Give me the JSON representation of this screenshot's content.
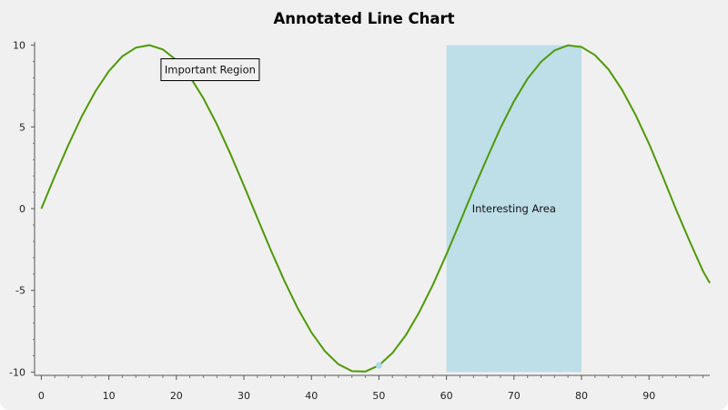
{
  "window": {
    "title": "Annotated Line Chart"
  },
  "chart_data": {
    "type": "line",
    "title": "Annotated Line Chart",
    "xlabel": "",
    "ylabel": "",
    "xlim": [
      -1,
      99
    ],
    "ylim": [
      -10.2,
      10.2
    ],
    "xticks": [
      0,
      10,
      20,
      30,
      40,
      50,
      60,
      70,
      80,
      90
    ],
    "yticks": [
      10,
      5,
      0,
      -5,
      -10
    ],
    "grid": false,
    "series": [
      {
        "color": "#4e9a06",
        "function": "10*sin(0.1*x)",
        "x": [
          0,
          2,
          4,
          6,
          8,
          10,
          12,
          14,
          16,
          18,
          20,
          22,
          24,
          26,
          28,
          30,
          32,
          34,
          36,
          38,
          40,
          42,
          44,
          46,
          48,
          50,
          52,
          54,
          56,
          58,
          60,
          62,
          64,
          66,
          68,
          70,
          72,
          74,
          76,
          78,
          80,
          82,
          84,
          86,
          88,
          90,
          92,
          94,
          96,
          98,
          99
        ],
        "y": [
          0.0,
          1.99,
          3.89,
          5.65,
          7.17,
          8.41,
          9.32,
          9.85,
          10.0,
          9.74,
          9.09,
          8.08,
          6.75,
          5.16,
          3.35,
          1.41,
          -0.58,
          -2.55,
          -4.42,
          -6.12,
          -7.57,
          -8.72,
          -9.52,
          -9.94,
          -9.96,
          -9.59,
          -8.83,
          -7.73,
          -6.31,
          -4.65,
          -2.79,
          -0.83,
          1.17,
          3.08,
          4.94,
          6.57,
          7.94,
          8.98,
          9.68,
          9.99,
          9.89,
          9.39,
          8.52,
          7.27,
          5.74,
          3.97,
          2.0,
          -0.05,
          -1.98,
          -3.83,
          -4.55
        ]
      }
    ],
    "annotations": [
      {
        "type": "text_box",
        "text": "Important Region",
        "x": 25,
        "y": 8.5
      },
      {
        "type": "shaded_region",
        "text": "Interesting Area",
        "x_start": 60,
        "x_end": 80,
        "y_start": -10,
        "y_end": 10,
        "color": "#add8e6"
      },
      {
        "type": "point",
        "x": 50,
        "y": -9.59,
        "color": "#add8e6"
      }
    ]
  }
}
